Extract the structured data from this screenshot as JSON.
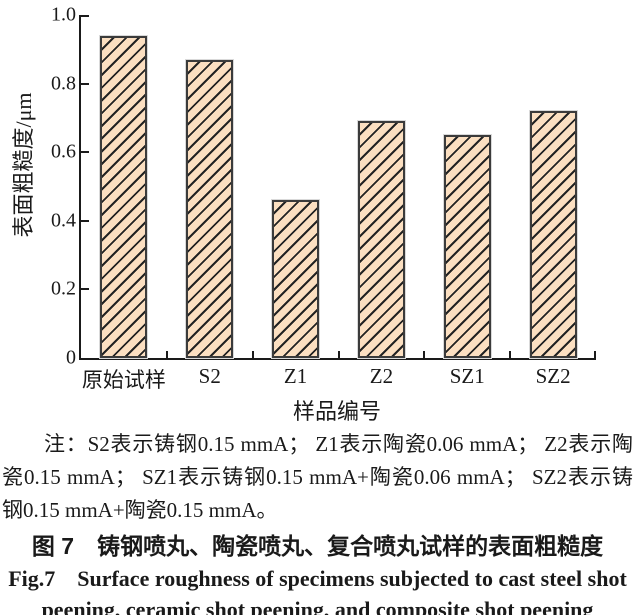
{
  "chart_data": {
    "type": "bar",
    "title": "",
    "categories": [
      "原始试样",
      "S2",
      "Z1",
      "Z2",
      "SZ1",
      "SZ2"
    ],
    "values": [
      0.94,
      0.87,
      0.46,
      0.69,
      0.65,
      0.72
    ],
    "xlabel": "样品编号",
    "ylabel": "表面粗糙度/μm",
    "ylim": [
      0,
      1.0
    ],
    "yticks": [
      0,
      0.2,
      0.4,
      0.6,
      0.8,
      1.0
    ],
    "ytick_labels": [
      "0",
      "0.2",
      "0.4",
      "0.6",
      "0.8",
      "1.0"
    ],
    "grid": false,
    "legend": "none",
    "bar_fill_color": "#fbdfc1",
    "hatch_pattern": "/",
    "hatch_color": "#232323",
    "bar_border_color": "#3b3b3b",
    "axis_color": "#1a1a1a"
  },
  "figure": {
    "note": "注：S2表示铸钢0.15 mmA； Z1表示陶瓷0.06 mmA； Z2表示陶瓷0.15 mmA； SZ1表示铸钢0.15 mmA+陶瓷0.06 mmA； SZ2表示铸钢0.15 mmA+陶瓷0.15 mmA。",
    "caption_zh": "图 7 铸钢喷丸、陶瓷喷丸、复合喷丸试样的表面粗糙度",
    "caption_en_lines": [
      "Fig.7 Surface roughness of specimens subjected to cast steel shot",
      "peening, ceramic shot peening, and composite shot peening"
    ]
  }
}
